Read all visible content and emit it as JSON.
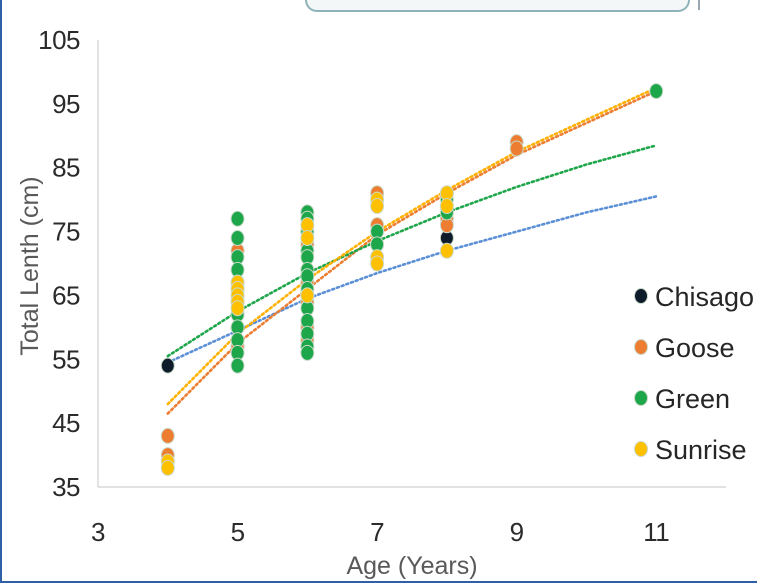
{
  "chart_data": {
    "type": "scatter",
    "title": "",
    "xlabel": "Age (Years)",
    "ylabel": "Total Lenth (cm)",
    "xlim": [
      3,
      12
    ],
    "ylim": [
      35,
      105
    ],
    "x_ticks": [
      3,
      5,
      7,
      9,
      11
    ],
    "y_ticks": [
      35,
      45,
      55,
      65,
      75,
      85,
      95,
      105
    ],
    "grid": false,
    "legend_position": "right",
    "trendlines": "dotted logarithmic fit per series",
    "series": [
      {
        "name": "Chisago",
        "color": "#0d1b2a",
        "points": [
          [
            4,
            54
          ],
          [
            8,
            74
          ]
        ],
        "trend": [
          [
            4,
            54.5
          ],
          [
            5,
            59.5
          ],
          [
            6,
            64.5
          ],
          [
            7,
            68.5
          ],
          [
            8,
            72
          ],
          [
            9,
            75
          ],
          [
            10,
            78
          ],
          [
            11,
            80.5
          ]
        ],
        "trend_color": "#5b8fd6"
      },
      {
        "name": "Goose",
        "color": "#ed7d31",
        "points": [
          [
            4,
            43
          ],
          [
            4,
            40
          ],
          [
            5,
            72
          ],
          [
            5,
            62
          ],
          [
            5,
            60
          ],
          [
            5,
            57
          ],
          [
            6,
            73
          ],
          [
            6,
            67
          ],
          [
            6,
            64
          ],
          [
            6,
            60
          ],
          [
            6,
            58
          ],
          [
            7,
            81
          ],
          [
            7,
            76
          ],
          [
            7,
            73
          ],
          [
            8,
            77
          ],
          [
            8,
            76
          ],
          [
            9,
            89
          ],
          [
            9,
            88
          ]
        ],
        "trend": [
          [
            4,
            46.5
          ],
          [
            5,
            57.5
          ],
          [
            6,
            66
          ],
          [
            7,
            74.5
          ],
          [
            8,
            81
          ],
          [
            9,
            87
          ],
          [
            10,
            92
          ],
          [
            11,
            97
          ]
        ],
        "trend_color": "#ed7d31"
      },
      {
        "name": "Green",
        "color": "#1ea64a",
        "points": [
          [
            5,
            77
          ],
          [
            5,
            74
          ],
          [
            5,
            71
          ],
          [
            5,
            69
          ],
          [
            5,
            67
          ],
          [
            5,
            66
          ],
          [
            5,
            64
          ],
          [
            5,
            62
          ],
          [
            5,
            60
          ],
          [
            5,
            58
          ],
          [
            5,
            56
          ],
          [
            5,
            54
          ],
          [
            6,
            78
          ],
          [
            6,
            77
          ],
          [
            6,
            75
          ],
          [
            6,
            72
          ],
          [
            6,
            71
          ],
          [
            6,
            69
          ],
          [
            6,
            68
          ],
          [
            6,
            66
          ],
          [
            6,
            65
          ],
          [
            6,
            63
          ],
          [
            6,
            61
          ],
          [
            6,
            59
          ],
          [
            6,
            57
          ],
          [
            6,
            56
          ],
          [
            7,
            75
          ],
          [
            7,
            73
          ],
          [
            8,
            80
          ],
          [
            8,
            78
          ],
          [
            11,
            97
          ]
        ],
        "trend": [
          [
            4,
            55.5
          ],
          [
            5,
            62.5
          ],
          [
            6,
            68.5
          ],
          [
            7,
            73.5
          ],
          [
            8,
            78
          ],
          [
            9,
            82
          ],
          [
            10,
            85.5
          ],
          [
            11,
            88.5
          ]
        ],
        "trend_color": "#1ea64a"
      },
      {
        "name": "Sunrise",
        "color": "#ffc000",
        "points": [
          [
            4,
            39
          ],
          [
            4,
            38
          ],
          [
            5,
            67
          ],
          [
            5,
            66
          ],
          [
            5,
            65
          ],
          [
            5,
            64
          ],
          [
            5,
            63
          ],
          [
            6,
            76
          ],
          [
            6,
            74
          ],
          [
            6,
            65
          ],
          [
            7,
            80
          ],
          [
            7,
            79
          ],
          [
            7,
            71
          ],
          [
            7,
            70
          ],
          [
            8,
            81
          ],
          [
            8,
            79
          ],
          [
            8,
            72
          ]
        ],
        "trend": [
          [
            4,
            48
          ],
          [
            5,
            59
          ],
          [
            6,
            67.5
          ],
          [
            7,
            75
          ],
          [
            8,
            81.5
          ],
          [
            9,
            87.5
          ],
          [
            10,
            92.5
          ],
          [
            11,
            97.5
          ]
        ],
        "trend_color": "#ffb000"
      }
    ]
  }
}
